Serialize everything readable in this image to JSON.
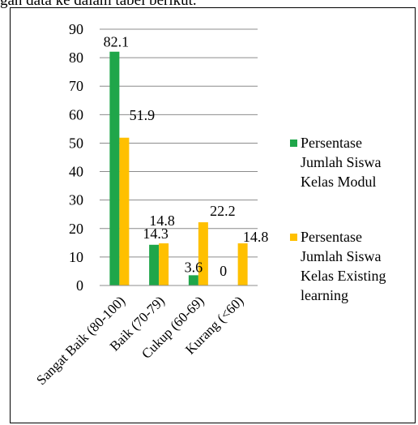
{
  "header_fragment": "gan data ke dalam tabel berikut.",
  "chart_data": {
    "type": "bar",
    "title": "",
    "xlabel": "",
    "ylabel": "",
    "ylim": [
      0,
      90
    ],
    "yticks": [
      "0",
      "10",
      "20",
      "30",
      "40",
      "50",
      "60",
      "70",
      "80",
      "90"
    ],
    "grid": true,
    "legend_position": "right",
    "categories": [
      "Sangat Baik (80-100)",
      "Baik (70-79)",
      "Cukup (60-69)",
      "Kurang (<60)"
    ],
    "series": [
      {
        "name": "Persentase Jumlah Siswa Kelas  Modul",
        "legend_lines": [
          "Persentase",
          "Jumlah Siswa",
          "Kelas  Modul"
        ],
        "color": "#1fa64a",
        "values": [
          82.1,
          14.3,
          3.6,
          0
        ],
        "labels": [
          "82.1",
          "14.3",
          "3.6",
          "0"
        ]
      },
      {
        "name": "Persentase Jumlah Siswa Kelas Existing learning",
        "legend_lines": [
          "Persentase",
          "Jumlah Siswa",
          "Kelas Existing",
          "learning"
        ],
        "color": "#ffc000",
        "values": [
          51.9,
          14.8,
          22.2,
          14.8
        ],
        "labels": [
          "51.9",
          "14.8",
          "22.2",
          "14.8"
        ]
      }
    ]
  }
}
